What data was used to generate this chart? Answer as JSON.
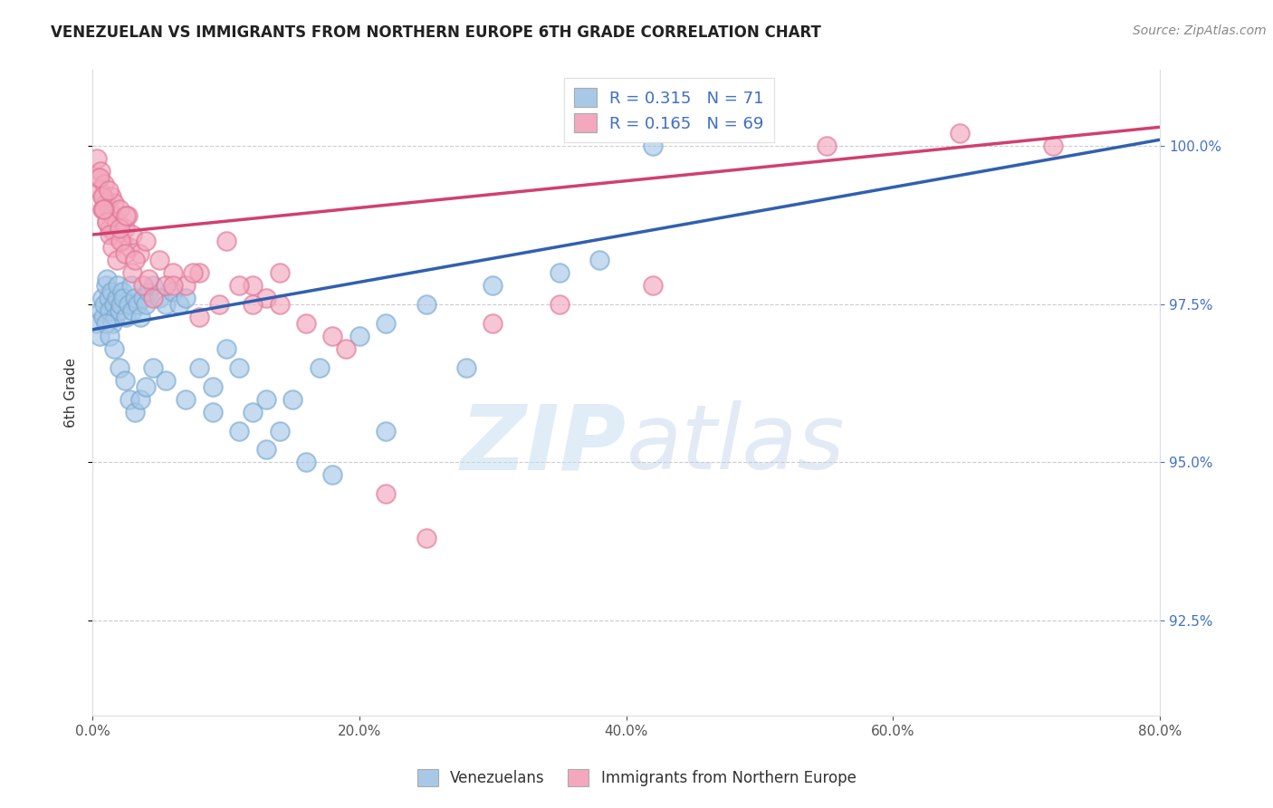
{
  "title": "VENEZUELAN VS IMMIGRANTS FROM NORTHERN EUROPE 6TH GRADE CORRELATION CHART",
  "source": "Source: ZipAtlas.com",
  "ylabel": "6th Grade",
  "xlim": [
    0.0,
    80.0
  ],
  "ylim": [
    91.0,
    101.2
  ],
  "xticks": [
    0.0,
    20.0,
    40.0,
    60.0,
    80.0
  ],
  "yticks": [
    92.5,
    95.0,
    97.5,
    100.0
  ],
  "xtick_labels": [
    "0.0%",
    "20.0%",
    "40.0%",
    "60.0%",
    "80.0%"
  ],
  "ytick_labels": [
    "92.5%",
    "95.0%",
    "97.5%",
    "100.0%"
  ],
  "blue_color": "#a8c8e8",
  "pink_color": "#f4a8be",
  "blue_edge_color": "#7aaad0",
  "pink_edge_color": "#e07898",
  "blue_line_color": "#3060b0",
  "pink_line_color": "#d04070",
  "blue_R": 0.315,
  "blue_N": 71,
  "pink_R": 0.165,
  "pink_N": 69,
  "legend_label_blue": "Venezuelans",
  "legend_label_pink": "Immigrants from Northern Europe",
  "watermark_zip": "ZIP",
  "watermark_atlas": "atlas",
  "blue_scatter_x": [
    0.3,
    0.5,
    0.6,
    0.7,
    0.8,
    0.9,
    1.0,
    1.1,
    1.2,
    1.3,
    1.4,
    1.5,
    1.6,
    1.7,
    1.8,
    1.9,
    2.0,
    2.1,
    2.2,
    2.3,
    2.5,
    2.7,
    2.9,
    3.0,
    3.2,
    3.4,
    3.6,
    3.8,
    4.0,
    4.2,
    4.5,
    5.0,
    5.5,
    6.0,
    6.5,
    7.0,
    8.0,
    9.0,
    10.0,
    11.0,
    12.0,
    13.0,
    14.0,
    15.0,
    17.0,
    20.0,
    22.0,
    25.0,
    30.0,
    35.0,
    38.0,
    42.0,
    1.0,
    1.3,
    1.6,
    2.0,
    2.4,
    2.8,
    3.2,
    3.6,
    4.0,
    4.5,
    5.5,
    7.0,
    9.0,
    11.0,
    13.0,
    16.0,
    18.0,
    22.0,
    28.0
  ],
  "blue_scatter_y": [
    97.2,
    97.0,
    97.4,
    97.6,
    97.3,
    97.5,
    97.8,
    97.9,
    97.6,
    97.4,
    97.7,
    97.2,
    97.5,
    97.3,
    97.6,
    97.8,
    97.4,
    97.5,
    97.7,
    97.6,
    97.3,
    97.5,
    97.8,
    97.4,
    97.6,
    97.5,
    97.3,
    97.6,
    97.5,
    97.7,
    97.8,
    97.6,
    97.5,
    97.7,
    97.5,
    97.6,
    96.5,
    96.2,
    96.8,
    96.5,
    95.8,
    96.0,
    95.5,
    96.0,
    96.5,
    97.0,
    97.2,
    97.5,
    97.8,
    98.0,
    98.2,
    100.0,
    97.2,
    97.0,
    96.8,
    96.5,
    96.3,
    96.0,
    95.8,
    96.0,
    96.2,
    96.5,
    96.3,
    96.0,
    95.8,
    95.5,
    95.2,
    95.0,
    94.8,
    95.5,
    96.5
  ],
  "pink_scatter_x": [
    0.3,
    0.4,
    0.5,
    0.6,
    0.7,
    0.8,
    0.9,
    1.0,
    1.1,
    1.2,
    1.3,
    1.4,
    1.5,
    1.6,
    1.7,
    1.8,
    2.0,
    2.2,
    2.4,
    2.6,
    2.8,
    3.0,
    3.5,
    4.0,
    5.0,
    6.0,
    7.0,
    8.0,
    10.0,
    12.0,
    14.0,
    0.5,
    0.7,
    0.9,
    1.1,
    1.3,
    1.5,
    1.8,
    2.1,
    2.4,
    3.0,
    3.8,
    4.5,
    5.5,
    7.5,
    9.5,
    11.0,
    13.0,
    16.0,
    19.0,
    22.0,
    25.0,
    12.0,
    18.0,
    30.0,
    35.0,
    42.0,
    55.0,
    65.0,
    72.0,
    8.0,
    14.0,
    0.8,
    1.2,
    2.0,
    2.5,
    3.2,
    4.2,
    6.0
  ],
  "pink_scatter_y": [
    99.8,
    99.5,
    99.3,
    99.6,
    99.0,
    99.2,
    99.4,
    99.1,
    98.8,
    99.0,
    98.7,
    99.2,
    98.9,
    99.1,
    98.6,
    98.8,
    99.0,
    98.5,
    98.7,
    98.9,
    98.4,
    98.6,
    98.3,
    98.5,
    98.2,
    98.0,
    97.8,
    98.0,
    98.5,
    97.8,
    98.0,
    99.5,
    99.2,
    99.0,
    98.8,
    98.6,
    98.4,
    98.2,
    98.5,
    98.3,
    98.0,
    97.8,
    97.6,
    97.8,
    98.0,
    97.5,
    97.8,
    97.6,
    97.2,
    96.8,
    94.5,
    93.8,
    97.5,
    97.0,
    97.2,
    97.5,
    97.8,
    100.0,
    100.2,
    100.0,
    97.3,
    97.5,
    99.0,
    99.3,
    98.7,
    98.9,
    98.2,
    97.9,
    97.8
  ]
}
